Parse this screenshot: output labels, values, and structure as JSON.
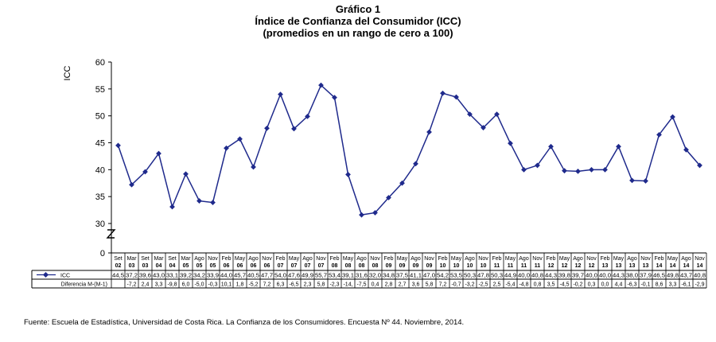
{
  "titles": {
    "line1": "Gráfico 1",
    "line2": "Índice de Confianza del Consumidor (ICC)",
    "line3": "(promedios en un rango de cero a 100)"
  },
  "chart_data": {
    "type": "line",
    "ylabel": "ICC",
    "ylim": [
      0,
      60
    ],
    "yticks": [
      0,
      30,
      35,
      40,
      45,
      50,
      55,
      60
    ],
    "axis_break": true,
    "legend_position": "left, inside data table",
    "line_color": "#1f2a8c",
    "categories": [
      [
        "Set",
        "02"
      ],
      [
        "Mar",
        "03"
      ],
      [
        "Set",
        "03"
      ],
      [
        "Mar",
        "04"
      ],
      [
        "Set",
        "04"
      ],
      [
        "Mar",
        "05"
      ],
      [
        "Ago",
        "05"
      ],
      [
        "Nov",
        "05"
      ],
      [
        "Feb",
        "06"
      ],
      [
        "May",
        "06"
      ],
      [
        "Ago",
        "06"
      ],
      [
        "Nov",
        "06"
      ],
      [
        "Feb",
        "07"
      ],
      [
        "May",
        "07"
      ],
      [
        "Ago",
        "07"
      ],
      [
        "Nov",
        "07"
      ],
      [
        "Feb",
        "08"
      ],
      [
        "May",
        "08"
      ],
      [
        "Ago",
        "08"
      ],
      [
        "Nov",
        "08"
      ],
      [
        "Feb",
        "09"
      ],
      [
        "May",
        "09"
      ],
      [
        "Ago",
        "09"
      ],
      [
        "Nov",
        "09"
      ],
      [
        "Feb",
        "10"
      ],
      [
        "May",
        "10"
      ],
      [
        "Ago",
        "10"
      ],
      [
        "Nov",
        "10"
      ],
      [
        "Feb",
        "11"
      ],
      [
        "May",
        "11"
      ],
      [
        "Ago",
        "11"
      ],
      [
        "Nov",
        "11"
      ],
      [
        "Feb",
        "12"
      ],
      [
        "May",
        "12"
      ],
      [
        "Ago",
        "12"
      ],
      [
        "Nov",
        "12"
      ],
      [
        "Feb",
        "13"
      ],
      [
        "May",
        "13"
      ],
      [
        "Ago",
        "13"
      ],
      [
        "Nov",
        "13"
      ],
      [
        "Feb",
        "14"
      ],
      [
        "May",
        "14"
      ],
      [
        "Ago",
        "14"
      ],
      [
        "Nov",
        "14"
      ]
    ],
    "series": [
      {
        "name": "ICC",
        "values": [
          44.5,
          37.2,
          39.6,
          43.0,
          33.1,
          39.2,
          34.2,
          33.9,
          44.0,
          45.7,
          40.5,
          47.7,
          54.0,
          47.6,
          49.9,
          55.7,
          53.4,
          39.1,
          31.6,
          32.0,
          34.8,
          37.5,
          41.1,
          47.0,
          54.2,
          53.5,
          50.3,
          47.8,
          50.3,
          44.9,
          40.0,
          40.8,
          44.3,
          39.8,
          39.7,
          40.0,
          40.0,
          44.3,
          38.0,
          37.9,
          46.5,
          49.8,
          43.7,
          40.8
        ],
        "labels": [
          "44,5",
          "37,2",
          "39,6",
          "43,0",
          "33,1",
          "39,2",
          "34,2",
          "33,9",
          "44,0",
          "45,7",
          "40,5",
          "47,7",
          "54,0",
          "47,6",
          "49,9",
          "55,7",
          "53,4",
          "39,1",
          "31,6",
          "32,0",
          "34,8",
          "37,5",
          "41,1",
          "47,0",
          "54,2",
          "53,5",
          "50,3",
          "47,8",
          "50,3",
          "44,9",
          "40,0",
          "40,8",
          "44,3",
          "39,8",
          "39,7",
          "40,0",
          "40,0",
          "44,3",
          "38,0",
          "37,9",
          "46,5",
          "49,8",
          "43,7",
          "40,8"
        ]
      },
      {
        "name": "Diferencia M-(M-1)",
        "values": [
          null,
          -7.2,
          2.4,
          3.3,
          -9.8,
          6.0,
          -5.0,
          -0.3,
          10.1,
          1.8,
          -5.2,
          7.2,
          6.3,
          -6.5,
          2.3,
          5.8,
          -2.3,
          -14,
          -7.5,
          0.4,
          2.8,
          2.7,
          3.6,
          5.8,
          7.2,
          -0.7,
          -3.2,
          -2.5,
          2.5,
          -5.4,
          -4.8,
          0.8,
          3.5,
          -4.5,
          -0.2,
          0.3,
          0.0,
          4.4,
          -6.3,
          -0.1,
          8.6,
          3.3,
          -6.1,
          -2.9
        ],
        "labels": [
          "",
          "-7,2",
          "2,4",
          "3,3",
          "-9,8",
          "6,0",
          "-5,0",
          "-0,3",
          "10,1",
          "1,8",
          "-5,2",
          "7,2",
          "6,3",
          "-6,5",
          "2,3",
          "5,8",
          "-2,3",
          "-14,",
          "-7,5",
          "0,4",
          "2,8",
          "2,7",
          "3,6",
          "5,8",
          "7,2",
          "-0,7",
          "-3,2",
          "-2,5",
          "2,5",
          "-5,4",
          "-4,8",
          "0,8",
          "3,5",
          "-4,5",
          "-0,2",
          "0,3",
          "0,0",
          "4,4",
          "-6,3",
          "-0,1",
          "8,6",
          "3,3",
          "-6,1",
          "-2,9"
        ]
      }
    ]
  },
  "source": "Fuente: Escuela de Estadística, Universidad de Costa Rica. La Confianza de los Consumidores. Encuesta Nº 44. Noviembre, 2014."
}
